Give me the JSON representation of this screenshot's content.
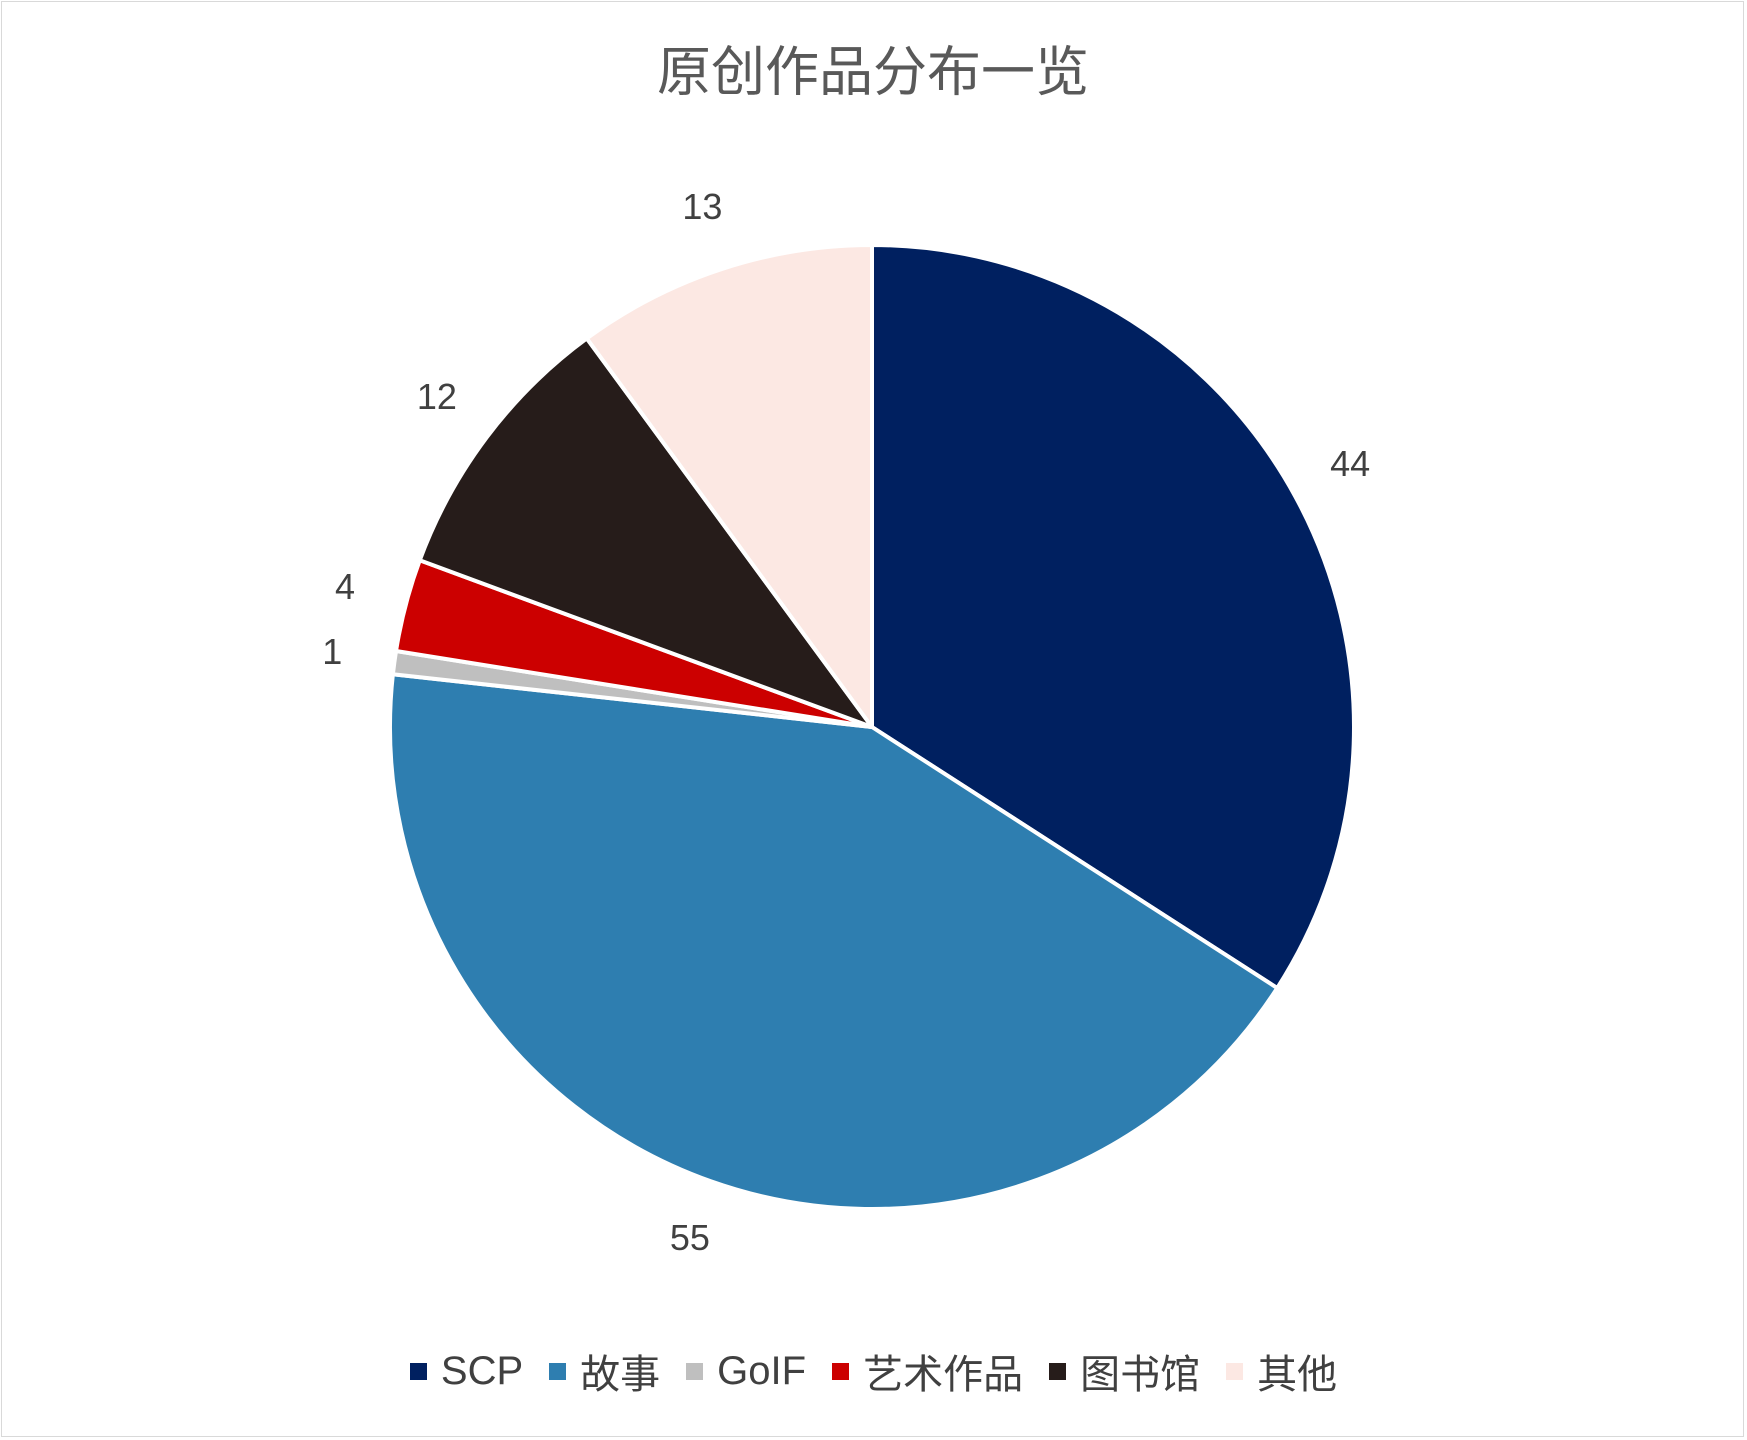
{
  "chart_data": {
    "type": "pie",
    "title": "原创作品分布一览",
    "categories": [
      "SCP",
      "故事",
      "GoIF",
      "艺术作品",
      "图书馆",
      "其他"
    ],
    "values": [
      44,
      55,
      1,
      4,
      12,
      13
    ],
    "colors": [
      "#002060",
      "#2e7eb0",
      "#bfbfbf",
      "#cc0000",
      "#261c1a",
      "#fce8e3"
    ],
    "legend": "bottom"
  }
}
